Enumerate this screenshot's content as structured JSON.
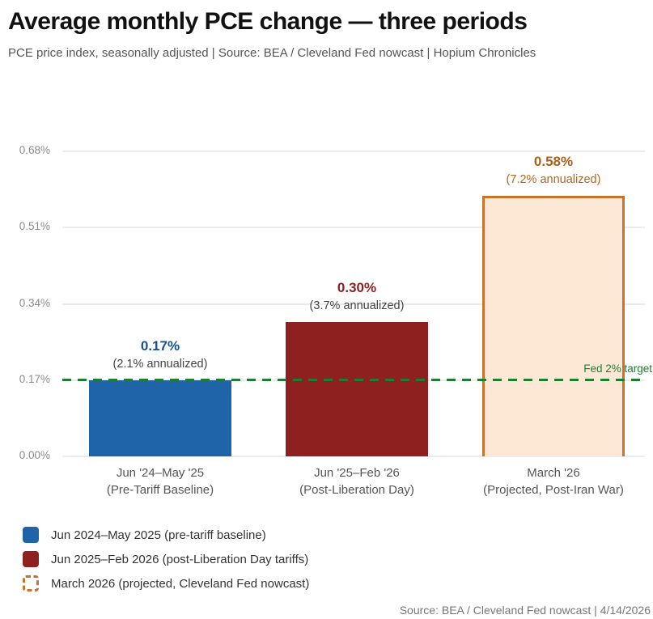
{
  "header": {
    "title": "Average monthly PCE change — three periods",
    "subtitle": "PCE price index, seasonally adjusted  |  Source: BEA / Cleveland Fed nowcast  |  Hopium Chronicles"
  },
  "chart_data": {
    "type": "bar",
    "title": "Average monthly PCE change — three periods",
    "xlabel": "",
    "ylabel": "",
    "ylim": [
      0,
      0.68
    ],
    "grid": true,
    "yticks": [
      {
        "value": 0.0,
        "label": "0.00%"
      },
      {
        "value": 0.17,
        "label": "0.17%"
      },
      {
        "value": 0.34,
        "label": "0.34%"
      },
      {
        "value": 0.51,
        "label": "0.51%"
      },
      {
        "value": 0.68,
        "label": "0.68%"
      }
    ],
    "categories": [
      "Jun '24–May '25 (Pre-Tariff Baseline)",
      "Jun '25–Feb '26 (Post-Liberation Day)",
      "March '26 (Projected, Post-Iran War)"
    ],
    "values": [
      0.17,
      0.3,
      0.58
    ],
    "bars": [
      {
        "value": 0.17,
        "value_label": "0.17%",
        "sublabel": "(2.1% annualized)",
        "x_label_line1": "Jun '24–May '25",
        "x_label_line2": "(Pre-Tariff Baseline)",
        "fill": "#1f63a8",
        "border": null,
        "value_label_color": "#17508c",
        "sublabel_color": "#444444"
      },
      {
        "value": 0.3,
        "value_label": "0.30%",
        "sublabel": "(3.7% annualized)",
        "x_label_line1": "Jun '25–Feb '26",
        "x_label_line2": "(Post-Liberation Day)",
        "fill": "#8e2020",
        "border": null,
        "value_label_color": "#8e2020",
        "sublabel_color": "#444444"
      },
      {
        "value": 0.58,
        "value_label": "0.58%",
        "sublabel": "(7.2% annualized)",
        "x_label_line1": "March '26",
        "x_label_line2": "(Projected, Post-Iran War)",
        "fill": "#fce8d5",
        "border": "#c8732d",
        "value_label_color": "#a8601c",
        "sublabel_color": "#b5671f"
      }
    ],
    "target_line": {
      "value": 0.17,
      "label": "Fed 2% target",
      "color": "#1e7d32",
      "style": "dashed"
    },
    "legend_position": "bottom-left"
  },
  "legend": {
    "items": [
      {
        "label": "Jun 2024–May 2025 (pre-tariff baseline)",
        "color": "#1f63a8",
        "swatch_style": "solid"
      },
      {
        "label": "Jun 2025–Feb 2026 (post-Liberation Day tariffs)",
        "color": "#8e2020",
        "swatch_style": "solid"
      },
      {
        "label": "March 2026 (projected, Cleveland Fed nowcast)",
        "color": "#c8732d",
        "swatch_style": "dashed"
      }
    ]
  },
  "footer": {
    "text": "Source: BEA / Cleveland Fed nowcast  |  4/14/2026"
  }
}
